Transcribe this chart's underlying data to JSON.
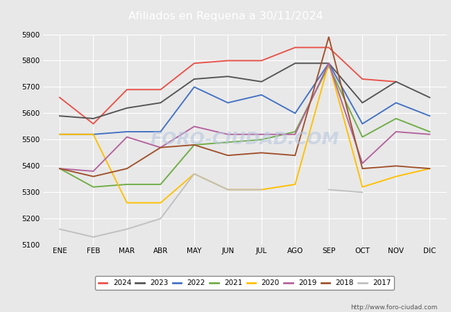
{
  "title": "Afiliados en Requena a 30/11/2024",
  "title_bg": "#4a7fc1",
  "xlabel": "",
  "ylabel": "",
  "ylim": [
    5100,
    5900
  ],
  "yticks": [
    5100,
    5200,
    5300,
    5400,
    5500,
    5600,
    5700,
    5800,
    5900
  ],
  "months": [
    "ENE",
    "FEB",
    "MAR",
    "ABR",
    "MAY",
    "JUN",
    "JUL",
    "AGO",
    "SEP",
    "OCT",
    "NOV",
    "DIC"
  ],
  "series": {
    "2024": {
      "color": "#e8534a",
      "data": [
        5660,
        5560,
        5690,
        5690,
        5790,
        5800,
        5800,
        5850,
        5850,
        5730,
        5720,
        null
      ]
    },
    "2023": {
      "color": "#555555",
      "data": [
        5590,
        5580,
        5620,
        5640,
        5730,
        5740,
        5720,
        5790,
        5790,
        5640,
        5720,
        5660
      ]
    },
    "2022": {
      "color": "#4472c4",
      "data": [
        5520,
        5520,
        5530,
        5530,
        5700,
        5640,
        5670,
        5600,
        5790,
        5560,
        5640,
        5590
      ]
    },
    "2021": {
      "color": "#70ad47",
      "data": [
        5390,
        5320,
        5330,
        5330,
        5480,
        5490,
        5500,
        5530,
        5780,
        5510,
        5580,
        5530
      ]
    },
    "2020": {
      "color": "#ffc000",
      "data": [
        5520,
        5520,
        5260,
        5260,
        5370,
        5310,
        5310,
        5330,
        5790,
        5320,
        5360,
        5390
      ]
    },
    "2019": {
      "color": "#b4649e",
      "data": [
        5390,
        5380,
        5510,
        5470,
        5550,
        5520,
        5520,
        5520,
        5790,
        5410,
        5530,
        5520
      ]
    },
    "2018": {
      "color": "#a0522d",
      "data": [
        5390,
        5360,
        5390,
        5470,
        5480,
        5440,
        5450,
        5440,
        5890,
        5390,
        5400,
        5390
      ]
    },
    "2017": {
      "color": "#c0c0c0",
      "data": [
        5160,
        5130,
        5160,
        5200,
        5370,
        5310,
        5310,
        null,
        5310,
        5300,
        null,
        null
      ]
    }
  },
  "watermark": "FORO-CIUDAD.COM",
  "footer": "http://www.foro-ciudad.com",
  "bg_color": "#e8e8e8",
  "plot_bg": "#e8e8e8"
}
